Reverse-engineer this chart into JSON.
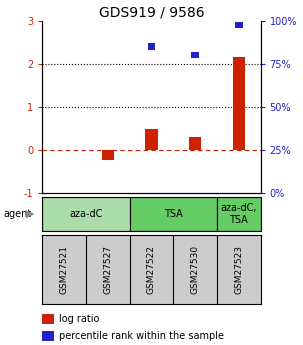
{
  "title": "GDS919 / 9586",
  "samples": [
    "GSM27521",
    "GSM27527",
    "GSM27522",
    "GSM27530",
    "GSM27523"
  ],
  "log_ratio": [
    0.0,
    -0.22,
    0.5,
    0.3,
    2.15
  ],
  "percentile_rank": [
    null,
    null,
    85.0,
    80.0,
    97.5
  ],
  "ylim_left": [
    -1,
    3
  ],
  "ylim_right": [
    0,
    100
  ],
  "yticks_left": [
    -1,
    0,
    1,
    2,
    3
  ],
  "ytick_labels_left": [
    "-1",
    "0",
    "1",
    "2",
    "3"
  ],
  "yticks_right_vals": [
    0,
    25,
    50,
    75,
    100
  ],
  "ytick_labels_right": [
    "0%",
    "25%",
    "50%",
    "75%",
    "100%"
  ],
  "bar_color": "#cc2200",
  "square_color": "#2222cc",
  "dotted_line_y": [
    1,
    2
  ],
  "dashed_line_y": 0,
  "group_spans": [
    {
      "start": 0,
      "end": 1,
      "label": "aza-dC",
      "color": "#aaddaa"
    },
    {
      "start": 2,
      "end": 3,
      "label": "TSA",
      "color": "#66cc66"
    },
    {
      "start": 4,
      "end": 4,
      "label": "aza-dC,\nTSA",
      "color": "#66cc66"
    }
  ],
  "sample_box_color": "#cccccc",
  "legend_items": [
    {
      "color": "#cc2200",
      "label": "log ratio"
    },
    {
      "color": "#2222cc",
      "label": "percentile rank within the sample"
    }
  ],
  "background_color": "#ffffff",
  "title_fontsize": 10,
  "tick_fontsize": 7,
  "label_fontsize": 7,
  "sample_fontsize": 6.5,
  "agent_fontsize": 7
}
